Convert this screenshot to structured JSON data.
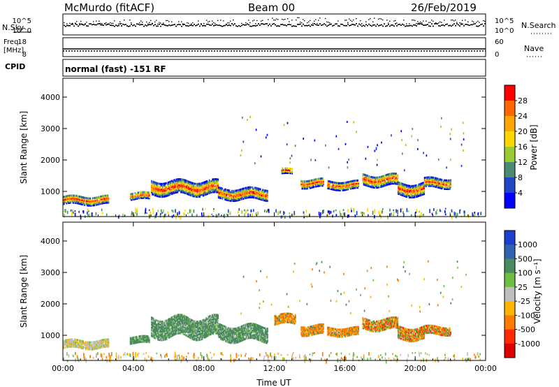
{
  "header": {
    "station": "McMurdo (fitACF)",
    "beam": "Beam 00",
    "date": "26/Feb/2019",
    "nsky_label": "N.Sky",
    "nsearch_label": "N.Search",
    "freq_label_1": "Freq.",
    "freq_label_2": "[MHz]",
    "nave_label": "Nave",
    "cpid_label": "CPID",
    "cpid_text": "normal (fast) -151 RF",
    "noise_ticks_left": [
      "10^5",
      "10^0"
    ],
    "noise_ticks_right": [
      "10^5",
      "10^0"
    ],
    "freq_ticks": [
      "18",
      "8"
    ],
    "nave_ticks": [
      "60",
      "0"
    ]
  },
  "chart_data": [
    {
      "type": "heatmap",
      "name": "power",
      "ylabel": "Slant Range [km]",
      "xlabel": "Time UT",
      "xlim": [
        0,
        24
      ],
      "ylim": [
        200,
        4600
      ],
      "x_ticks": [
        "00:00",
        "04:00",
        "08:00",
        "12:00",
        "16:00",
        "20:00",
        "00:00"
      ],
      "y_ticks": [
        1000,
        2000,
        3000,
        4000
      ],
      "colorbar_label": "Power [dB]",
      "colorbar_ticks": [
        "4",
        "8",
        "12",
        "16",
        "20",
        "24",
        "28"
      ],
      "colors": [
        "#0000ff",
        "#1f45c8",
        "#4a8a70",
        "#9acd32",
        "#ffd700",
        "#ffa500",
        "#ff6600",
        "#ff0000"
      ],
      "bands": [
        {
          "t0": 0.0,
          "t1": 2.6,
          "range": 760,
          "width": 260
        },
        {
          "t0": 3.8,
          "t1": 4.9,
          "range": 900,
          "width": 220
        },
        {
          "t0": 5.0,
          "t1": 8.8,
          "range": 1150,
          "width": 420
        },
        {
          "t0": 8.8,
          "t1": 11.6,
          "range": 950,
          "width": 320
        },
        {
          "t0": 12.4,
          "t1": 13.0,
          "range": 1680,
          "width": 180
        },
        {
          "t0": 13.5,
          "t1": 14.8,
          "range": 1300,
          "width": 260
        },
        {
          "t0": 15.0,
          "t1": 16.8,
          "range": 1230,
          "width": 240
        },
        {
          "t0": 17.0,
          "t1": 19.0,
          "range": 1400,
          "width": 360
        },
        {
          "t0": 19.0,
          "t1": 20.5,
          "range": 1100,
          "width": 380
        },
        {
          "t0": 20.5,
          "t1": 22.0,
          "range": 1300,
          "width": 280
        }
      ]
    },
    {
      "type": "heatmap",
      "name": "velocity",
      "ylabel": "Slant Range [km]",
      "xlabel": "Time UT",
      "xlim": [
        0,
        24
      ],
      "ylim": [
        200,
        4600
      ],
      "x_ticks": [
        "00:00",
        "04:00",
        "08:00",
        "12:00",
        "16:00",
        "20:00",
        "00:00"
      ],
      "y_ticks": [
        1000,
        2000,
        3000,
        4000
      ],
      "colorbar_label": "Velocity [m s⁻¹]",
      "colorbar_ticks": [
        "1000",
        "500",
        "100",
        "25",
        "-25",
        "-100",
        "-500",
        "-1000"
      ],
      "colors": [
        "#1c3fd1",
        "#2f62b0",
        "#4a8a5e",
        "#6ec043",
        "#bebebe",
        "#ffb400",
        "#ff7a00",
        "#ff2a00",
        "#dd0000"
      ],
      "bands": [
        {
          "t0": 0.0,
          "t1": 2.6,
          "range": 760,
          "width": 260
        },
        {
          "t0": 3.8,
          "t1": 4.9,
          "range": 900,
          "width": 220
        },
        {
          "t0": 5.0,
          "t1": 8.8,
          "range": 1300,
          "width": 620
        },
        {
          "t0": 8.8,
          "t1": 11.6,
          "range": 1100,
          "width": 460
        },
        {
          "t0": 12.0,
          "t1": 13.2,
          "range": 1550,
          "width": 300
        },
        {
          "t0": 13.5,
          "t1": 14.8,
          "range": 1200,
          "width": 280
        },
        {
          "t0": 15.0,
          "t1": 16.8,
          "range": 1150,
          "width": 240
        },
        {
          "t0": 17.0,
          "t1": 19.0,
          "range": 1400,
          "width": 360
        },
        {
          "t0": 19.0,
          "t1": 20.5,
          "range": 1100,
          "width": 380
        },
        {
          "t0": 20.5,
          "t1": 22.0,
          "range": 1200,
          "width": 260
        }
      ]
    }
  ]
}
